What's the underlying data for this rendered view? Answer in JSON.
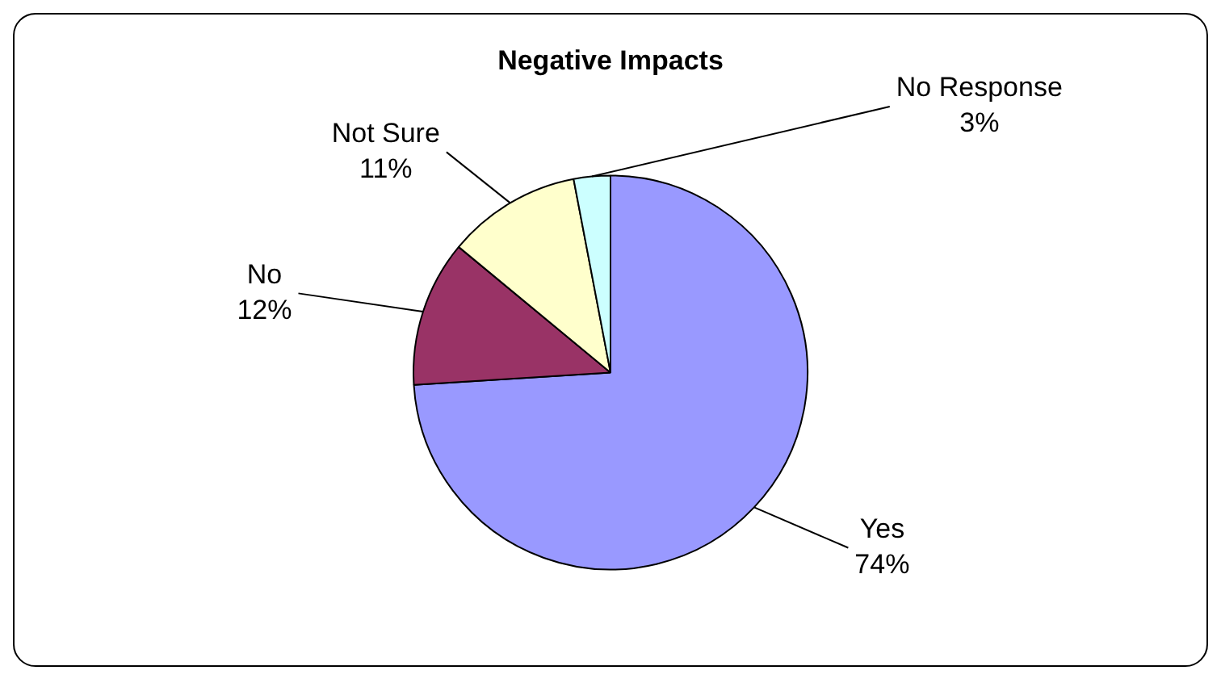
{
  "chart_data": {
    "type": "pie",
    "title": "Negative Impacts",
    "categories": [
      "Yes",
      "No",
      "Not Sure",
      "No Response"
    ],
    "values": [
      74,
      12,
      11,
      3
    ],
    "value_labels": [
      "74%",
      "12%",
      "11%",
      "3%"
    ],
    "colors": [
      "#9999ff",
      "#993366",
      "#ffffcc",
      "#ccffff"
    ],
    "legend": false
  }
}
